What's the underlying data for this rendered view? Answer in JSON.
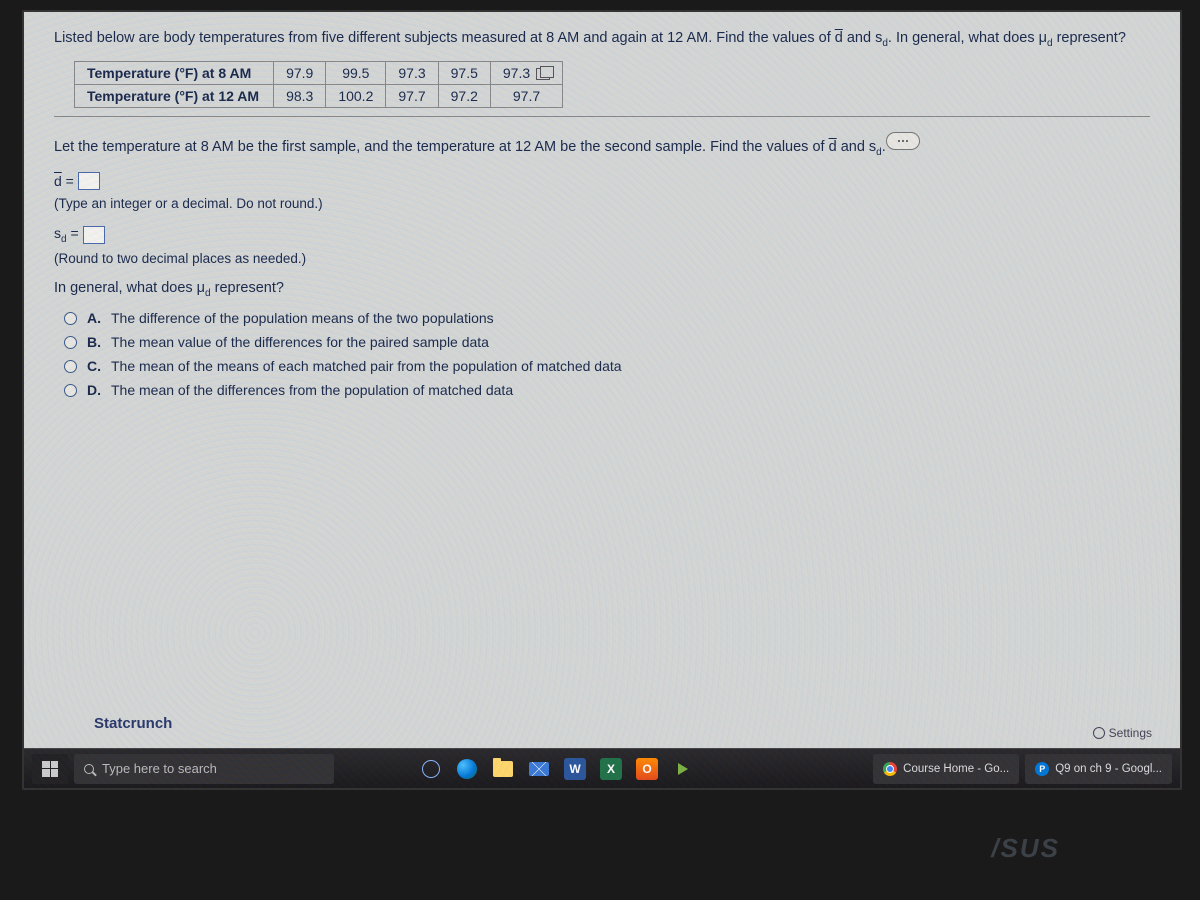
{
  "question": {
    "intro": "Listed below are body temperatures from five different subjects measured at 8 AM and again at 12 AM. Find the values of d̄ and s_d. In general, what does μ_d represent?",
    "table": {
      "row1_label": "Temperature (°F) at 8 AM",
      "row2_label": "Temperature (°F) at 12 AM",
      "row1": [
        "97.9",
        "99.5",
        "97.3",
        "97.5",
        "97.3"
      ],
      "row2": [
        "98.3",
        "100.2",
        "97.7",
        "97.2",
        "97.7"
      ]
    },
    "instruction": "Let the temperature at 8 AM be the first sample, and the temperature at 12 AM be the second sample. Find the values of d̄ and s_d.",
    "dbar_label": "d̄ =",
    "dbar_hint": "(Type an integer or a decimal. Do not round.)",
    "sd_label": "s_d =",
    "sd_hint": "(Round to two decimal places as needed.)",
    "subquestion": "In general, what does μ_d represent?",
    "choices": {
      "a": "The difference of the population means of the two populations",
      "b": "The mean value of the differences for the paired sample data",
      "c": "The mean of the means of each matched pair from the population of matched data",
      "d": "The mean of the differences from the population of matched data"
    },
    "statcrunch": "Statcrunch",
    "settings": "Settings"
  },
  "taskbar": {
    "search_placeholder": "Type here to search",
    "tab1": "Course Home - Go...",
    "tab2": "Q9 on ch 9 - Googl..."
  },
  "bezel_brand": "/SUS",
  "colors": {
    "screen_bg": "#d4d8d4",
    "text": "#1a2a4a",
    "taskbar_bg": "#1a1a1a"
  }
}
